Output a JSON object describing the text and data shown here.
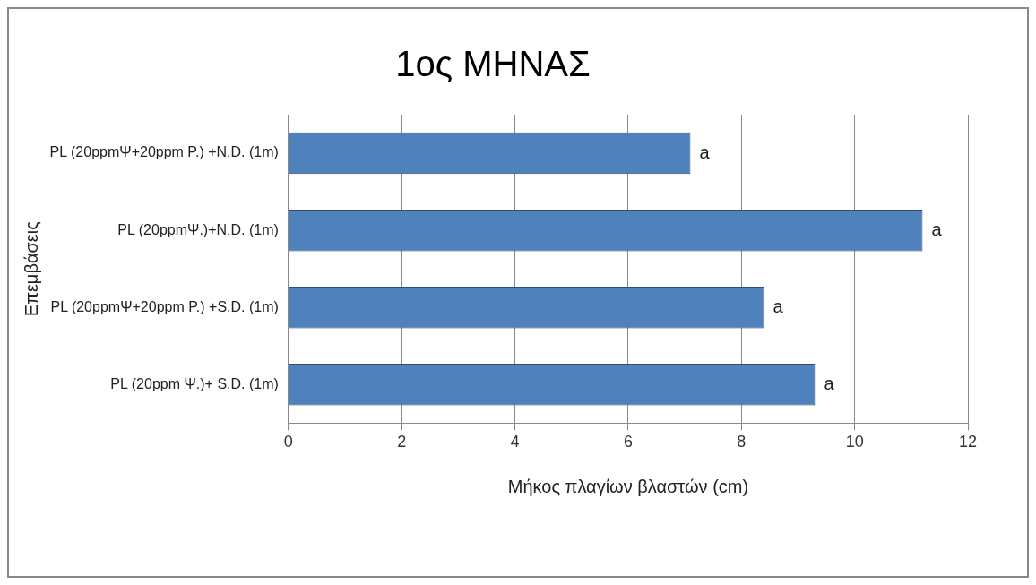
{
  "chart_data": {
    "type": "bar",
    "orientation": "horizontal",
    "title": "1ος ΜΗΝΑΣ",
    "xlabel": "Μήκος πλαγίων βλαστών (cm)",
    "ylabel": "Επεμβάσεις",
    "categories": [
      "PL (20ppmΨ+20ppm P.) +N.D. (1m)",
      "PL (20ppmΨ.)+N.D. (1m)",
      "PL (20ppmΨ+20ppm P.) +S.D. (1m)",
      "PL (20ppm Ψ.)+ S.D. (1m)"
    ],
    "values": [
      7.1,
      11.2,
      8.4,
      9.3
    ],
    "color": "#4f81bd",
    "xlim": [
      0,
      12
    ],
    "xticks": [
      0,
      2,
      4,
      6,
      8,
      10,
      12
    ],
    "grid": "x",
    "legend": false,
    "annotations": [
      {
        "text": "a",
        "x": 7.1,
        "y": "PL (20ppmΨ+20ppm P.) +N.D. (1m)"
      },
      {
        "text": "a",
        "x": 11.2,
        "y": "PL (20ppmΨ.)+N.D. (1m)"
      },
      {
        "text": "a",
        "x": 8.4,
        "y": "PL (20ppmΨ+20ppm P.) +S.D. (1m)"
      },
      {
        "text": "a",
        "x": 9.3,
        "y": "PL (20ppm Ψ.)+ S.D. (1m)"
      }
    ]
  }
}
